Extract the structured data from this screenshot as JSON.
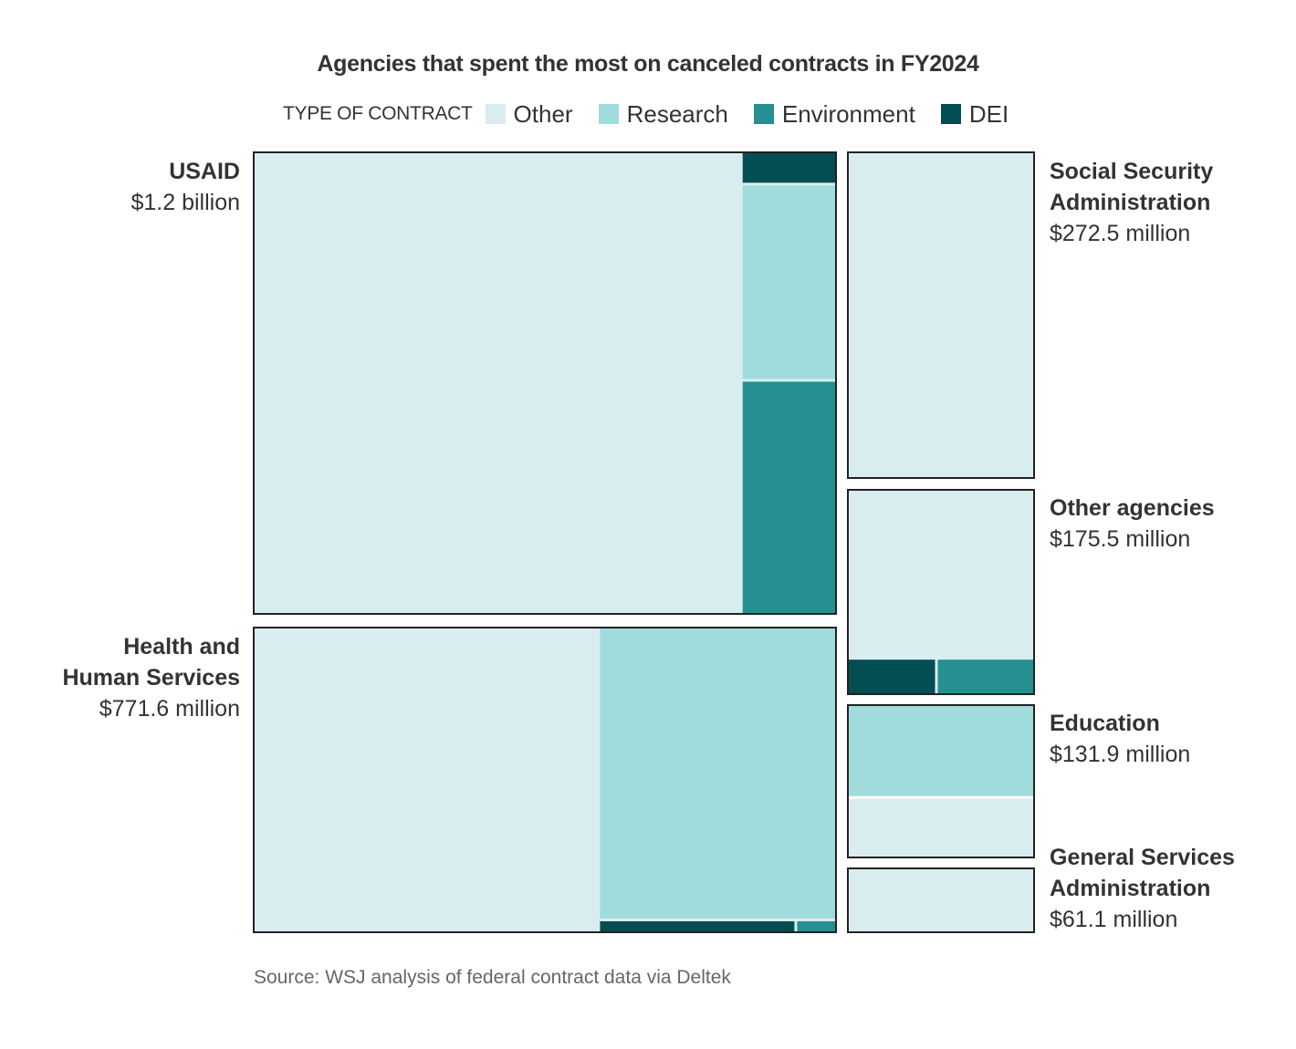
{
  "chart_data": {
    "type": "treemap",
    "title": "Agencies that spent the most on canceled contracts in FY2024",
    "legend": {
      "title": "TYPE OF CONTRACT",
      "placement": "top",
      "items": [
        {
          "name": "Other",
          "color": "#d9edf0"
        },
        {
          "name": "Research",
          "color": "#9fdcdb"
        },
        {
          "name": "Environment",
          "color": "#258f91"
        },
        {
          "name": "DEI",
          "color": "#034e52"
        }
      ]
    },
    "agencies": [
      {
        "name": "USAID",
        "total_label": "$1.2 billion",
        "total_millions": 1200,
        "breakdown": {
          "Other": 0.835,
          "Research": 0.07,
          "Environment": 0.084,
          "DEI": 0.011
        }
      },
      {
        "name": "Health and Human Services",
        "name_lines": [
          "Health and",
          "Human Services"
        ],
        "total_label": "$771.6 million",
        "total_millions": 771.6,
        "breakdown": {
          "Other": 0.59,
          "Research": 0.386,
          "Environment": 0.004,
          "DEI": 0.02
        }
      },
      {
        "name": "Social Security Administration",
        "name_lines": [
          "Social Security",
          "Administration"
        ],
        "total_label": "$272.5 million",
        "total_millions": 272.5,
        "breakdown": {
          "Other": 1.0,
          "Research": 0,
          "Environment": 0,
          "DEI": 0
        }
      },
      {
        "name": "Other agencies",
        "total_label": "$175.5 million",
        "total_millions": 175.5,
        "breakdown": {
          "Other": 0.8,
          "Research": 0,
          "Environment": 0.1,
          "DEI": 0.1
        }
      },
      {
        "name": "Education",
        "total_label": "$131.9 million",
        "total_millions": 131.9,
        "breakdown": {
          "Other": 0.4,
          "Research": 0.6,
          "Environment": 0,
          "DEI": 0
        }
      },
      {
        "name": "General Services Administration",
        "name_lines": [
          "General Services",
          "Administration"
        ],
        "total_label": "$61.1 million",
        "total_millions": 61.1,
        "breakdown": {
          "Other": 1.0,
          "Research": 0,
          "Environment": 0,
          "DEI": 0
        }
      }
    ],
    "source": "Source: WSJ analysis of federal contract data via Deltek"
  }
}
